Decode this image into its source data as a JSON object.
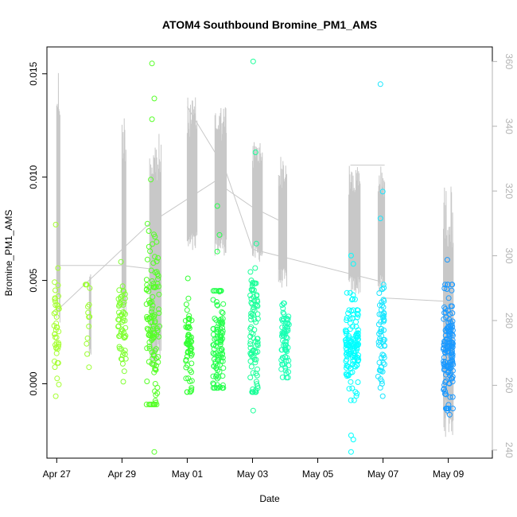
{
  "chart_data": {
    "type": "scatter",
    "title": "ATOM4 Southbound Bromine_PM1_AMS",
    "xlabel": "Date",
    "ylabel": "Bromine_PM1_AMS",
    "xlim": [
      -0.3,
      13.35
    ],
    "ylim": [
      -0.0036,
      0.0163
    ],
    "x_ticks": [
      {
        "x": 0,
        "label": "Apr 27"
      },
      {
        "x": 2,
        "label": "Apr 29"
      },
      {
        "x": 4,
        "label": "May 01"
      },
      {
        "x": 6,
        "label": "May 03"
      },
      {
        "x": 8,
        "label": "May 05"
      },
      {
        "x": 10,
        "label": "May 07"
      },
      {
        "x": 12,
        "label": "May 09"
      }
    ],
    "y_ticks": [
      {
        "y": 0.0,
        "label": "0.000"
      },
      {
        "y": 0.005,
        "label": "0.005"
      },
      {
        "y": 0.01,
        "label": "0.010"
      },
      {
        "y": 0.015,
        "label": "0.015"
      }
    ],
    "right_axis": {
      "ylim": [
        237.5,
        364.5
      ],
      "ticks": [
        {
          "y": 240,
          "label": "240"
        },
        {
          "y": 260,
          "label": "260"
        },
        {
          "y": 280,
          "label": "280"
        },
        {
          "y": 300,
          "label": "300"
        },
        {
          "y": 320,
          "label": "320"
        },
        {
          "y": 340,
          "label": "340"
        },
        {
          "y": 360,
          "label": "360"
        }
      ]
    },
    "clusters": [
      {
        "x": 0.0,
        "spread": 0.08,
        "color": "#a6ff33",
        "n": 40,
        "center": 0.0025,
        "sd": 0.0012,
        "min": -0.0006,
        "max": 0.0077,
        "extremes": [
          0.0077,
          0.0056,
          -0.0006
        ]
      },
      {
        "x": 0.95,
        "spread": 0.07,
        "color": "#9cff33",
        "n": 12,
        "center": 0.0035,
        "sd": 0.0009,
        "min": 0.0008,
        "max": 0.0048,
        "extremes": [
          0.0048,
          0.0008
        ]
      },
      {
        "x": 2.0,
        "spread": 0.12,
        "color": "#80ff33",
        "n": 55,
        "center": 0.0028,
        "sd": 0.0013,
        "min": 0.0001,
        "max": 0.0059,
        "extremes": [
          0.0059,
          0.0001
        ]
      },
      {
        "x": 2.95,
        "spread": 0.2,
        "color": "#55ff26",
        "n": 120,
        "center": 0.0028,
        "sd": 0.0022,
        "min": -0.001,
        "max": 0.0113,
        "extremes": [
          0.0155,
          0.0138,
          0.0128,
          -0.0033
        ]
      },
      {
        "x": 4.05,
        "spread": 0.1,
        "color": "#33ff33",
        "n": 60,
        "center": 0.0018,
        "sd": 0.001,
        "min": -0.0004,
        "max": 0.0051,
        "extremes": [
          0.0051,
          -0.0004
        ]
      },
      {
        "x": 4.95,
        "spread": 0.16,
        "color": "#26ff4d",
        "n": 110,
        "center": 0.002,
        "sd": 0.0014,
        "min": -0.0002,
        "max": 0.0045,
        "extremes": [
          0.0086,
          0.0072,
          0.0064
        ]
      },
      {
        "x": 6.05,
        "spread": 0.12,
        "color": "#1aff99",
        "n": 90,
        "center": 0.0022,
        "sd": 0.0018,
        "min": -0.0004,
        "max": 0.0103,
        "extremes": [
          0.0156,
          0.0112,
          -0.0013
        ]
      },
      {
        "x": 7.0,
        "spread": 0.12,
        "color": "#1affb3",
        "n": 70,
        "center": 0.0022,
        "sd": 0.0009,
        "min": 0.0003,
        "max": 0.0039,
        "extremes": [
          0.0039,
          0.0003
        ]
      },
      {
        "x": 9.05,
        "spread": 0.2,
        "color": "#00ffff",
        "n": 130,
        "center": 0.0018,
        "sd": 0.0012,
        "min": -0.0008,
        "max": 0.0044,
        "extremes": [
          0.0062,
          0.0058,
          -0.0033,
          -0.0027,
          -0.0025
        ]
      },
      {
        "x": 9.95,
        "spread": 0.1,
        "color": "#19e6ff",
        "n": 60,
        "center": 0.0022,
        "sd": 0.0014,
        "min": -0.0002,
        "max": 0.0048,
        "extremes": [
          0.0145,
          0.0093,
          0.008,
          -0.0006
        ]
      },
      {
        "x": 12.0,
        "spread": 0.15,
        "color": "#1a99ff",
        "n": 140,
        "center": 0.002,
        "sd": 0.0014,
        "min": -0.0012,
        "max": 0.0048,
        "extremes": [
          0.006,
          -0.0015,
          -0.0013
        ]
      }
    ],
    "secondary_series": {
      "name": "envelope (right axis)",
      "color": "#c8c8c8",
      "spike_groups": [
        {
          "x0": 0.0,
          "x1": 0.1,
          "low": 277,
          "high": 360
        },
        {
          "x0": 1.0,
          "x1": 1.05,
          "low": 268,
          "high": 295
        },
        {
          "x0": 2.0,
          "x1": 2.12,
          "low": 280,
          "high": 345
        },
        {
          "x0": 2.85,
          "x1": 3.2,
          "low": 265,
          "high": 338
        },
        {
          "x0": 4.0,
          "x1": 4.3,
          "low": 300,
          "high": 349
        },
        {
          "x0": 4.85,
          "x1": 5.2,
          "low": 300,
          "high": 347
        },
        {
          "x0": 6.0,
          "x1": 6.3,
          "low": 298,
          "high": 336
        },
        {
          "x0": 6.8,
          "x1": 7.05,
          "low": 290,
          "high": 331
        },
        {
          "x0": 8.95,
          "x1": 9.3,
          "low": 288,
          "high": 328
        },
        {
          "x0": 9.85,
          "x1": 10.05,
          "low": 288,
          "high": 328
        },
        {
          "x0": 11.85,
          "x1": 12.15,
          "low": 244,
          "high": 322
        }
      ],
      "connect_lines": [
        [
          [
            0.0,
            283
          ],
          [
            2.85,
            310
          ],
          [
            4.85,
            323
          ],
          [
            6.0,
            315
          ],
          [
            6.8,
            311
          ]
        ],
        [
          [
            0.0,
            297
          ],
          [
            1.0,
            297
          ],
          [
            2.0,
            297
          ],
          [
            2.85,
            296
          ]
        ],
        [
          [
            4.0,
            346
          ],
          [
            5.15,
            327
          ],
          [
            6.0,
            302
          ],
          [
            9.95,
            292
          ]
        ],
        [
          [
            9.95,
            287
          ],
          [
            11.85,
            286
          ]
        ],
        [
          [
            9.0,
            328
          ],
          [
            10.05,
            328
          ]
        ]
      ]
    }
  }
}
